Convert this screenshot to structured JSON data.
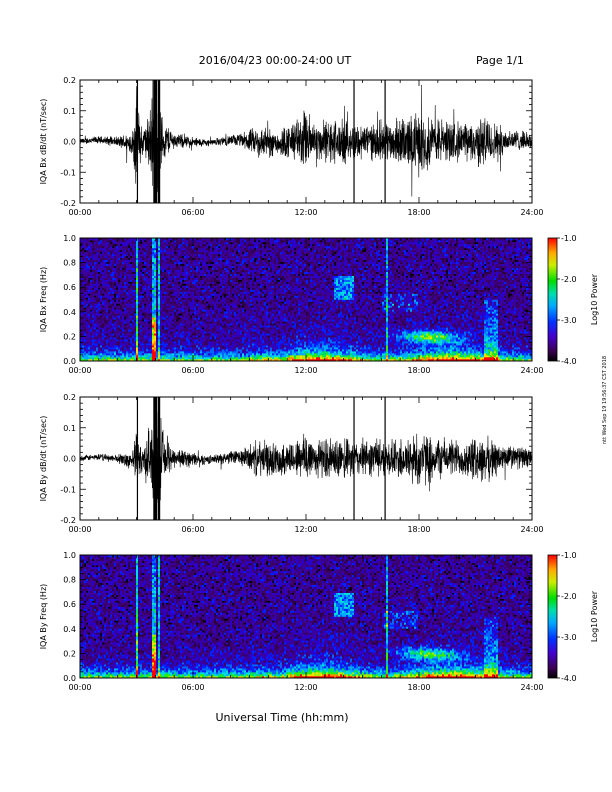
{
  "header": {
    "title": "2016/04/23  00:00-24:00 UT",
    "page": "Page 1/1"
  },
  "footer": {
    "xlabel": "Universal Time (hh:mm)",
    "stamp": "ntt Wed Sep 19 19:56:37 CST 2018"
  },
  "chart_data": [
    {
      "type": "line",
      "ylabel": "IQA Bx dB/dt (nT/sec)",
      "ylim": [
        -0.2,
        0.2
      ],
      "yticks": [
        "-0.2",
        "-0.1",
        "0.0",
        "0.1",
        "0.2"
      ],
      "xlim": [
        "00:00",
        "24:00"
      ],
      "xticks": [
        "00:00",
        "06:00",
        "12:00",
        "18:00",
        "24:00"
      ],
      "amplitude_envelope": {
        "hours": [
          0,
          2,
          2.8,
          3,
          3.3,
          3.6,
          3.9,
          4.1,
          4.4,
          5,
          7,
          8.5,
          9.5,
          10.5,
          11.5,
          12,
          12.5,
          13.5,
          14.5,
          15.5,
          16.5,
          17.5,
          18,
          18.5,
          19.5,
          20.5,
          21.5,
          22.5,
          23.5,
          24
        ],
        "amp": [
          0.012,
          0.018,
          0.05,
          0.2,
          0.05,
          0.09,
          0.22,
          0.22,
          0.08,
          0.03,
          0.012,
          0.025,
          0.06,
          0.05,
          0.08,
          0.12,
          0.07,
          0.09,
          0.07,
          0.07,
          0.08,
          0.1,
          0.12,
          0.1,
          0.08,
          0.07,
          0.1,
          0.05,
          0.035,
          0.03
        ]
      }
    },
    {
      "type": "heatmap",
      "ylabel": "IQA Bx Freq (Hz)",
      "ylim": [
        0.0,
        1.0
      ],
      "yticks": [
        "0.0",
        "0.2",
        "0.4",
        "0.6",
        "0.8",
        "1.0"
      ],
      "xlim": [
        "00:00",
        "24:00"
      ],
      "xticks": [
        "00:00",
        "06:00",
        "12:00",
        "18:00",
        "24:00"
      ],
      "colorbar": {
        "label": "Log10 Power",
        "range": [
          -4.0,
          -1.0
        ],
        "ticks": [
          "-1.0",
          "-2.0",
          "-3.0",
          "-4.0"
        ]
      }
    },
    {
      "type": "line",
      "ylabel": "IQA By dB/dt (nT/sec)",
      "ylim": [
        -0.2,
        0.2
      ],
      "yticks": [
        "-0.2",
        "-0.1",
        "0.0",
        "0.1",
        "0.2"
      ],
      "xlim": [
        "00:00",
        "24:00"
      ],
      "xticks": [
        "00:00",
        "06:00",
        "12:00",
        "18:00",
        "24:00"
      ],
      "amplitude_envelope": {
        "hours": [
          0,
          2,
          2.8,
          3,
          3.3,
          3.6,
          3.9,
          4.1,
          4.4,
          5,
          7,
          8.5,
          9.5,
          10.5,
          11.5,
          12,
          12.5,
          13.5,
          14.5,
          15.5,
          16.5,
          17.5,
          18,
          18.5,
          19.5,
          20.5,
          21.5,
          22.5,
          23.5,
          24
        ],
        "amp": [
          0.01,
          0.015,
          0.04,
          0.1,
          0.05,
          0.1,
          0.22,
          0.2,
          0.1,
          0.04,
          0.015,
          0.03,
          0.07,
          0.06,
          0.07,
          0.11,
          0.07,
          0.08,
          0.07,
          0.07,
          0.07,
          0.09,
          0.11,
          0.09,
          0.07,
          0.07,
          0.09,
          0.05,
          0.04,
          0.035
        ]
      }
    },
    {
      "type": "heatmap",
      "ylabel": "IQA By Freq (Hz)",
      "ylim": [
        0.0,
        1.0
      ],
      "yticks": [
        "0.0",
        "0.2",
        "0.4",
        "0.6",
        "0.8",
        "1.0"
      ],
      "xlim": [
        "00:00",
        "24:00"
      ],
      "xticks": [
        "00:00",
        "06:00",
        "12:00",
        "18:00",
        "24:00"
      ],
      "colorbar": {
        "label": "Log10 Power",
        "range": [
          -4.0,
          -1.0
        ],
        "ticks": [
          "-1.0",
          "-2.0",
          "-3.0",
          "-4.0"
        ]
      }
    }
  ]
}
